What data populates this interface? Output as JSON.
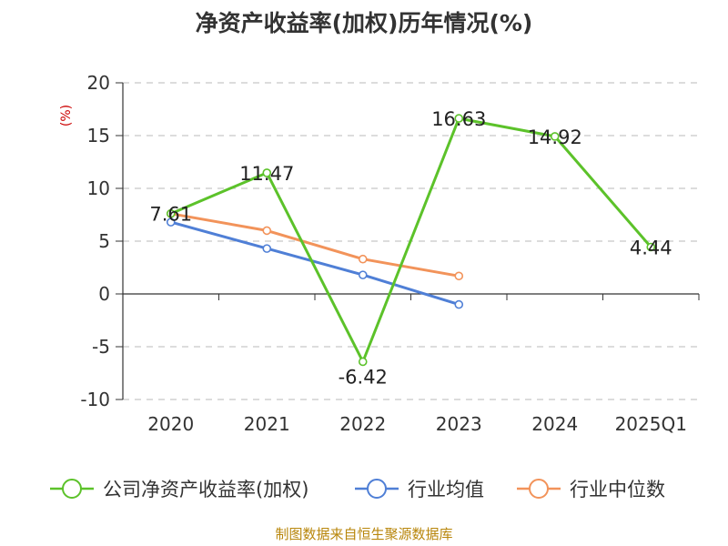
{
  "chart_data": {
    "type": "line",
    "title": "净资产收益率(加权)历年情况(%)",
    "ylabel": "(%)",
    "xlabel": "",
    "categories": [
      "2020",
      "2021",
      "2022",
      "2023",
      "2024",
      "2025Q1"
    ],
    "ylim": [
      -10,
      20
    ],
    "yticks": [
      20,
      15,
      10,
      5,
      0,
      -5,
      -10
    ],
    "grid": true,
    "legend_position": "bottom",
    "series": [
      {
        "name": "公司净资产收益率(加权)",
        "color": "#5cc22a",
        "values": [
          7.61,
          11.47,
          -6.42,
          16.63,
          14.92,
          4.44
        ],
        "labels": [
          "7.61",
          "11.47",
          "-6.42",
          "16.63",
          "14.92",
          "4.44"
        ]
      },
      {
        "name": "行业均值",
        "color": "#4f7fd6",
        "values": [
          6.8,
          4.3,
          1.8,
          -1.0,
          null,
          null
        ]
      },
      {
        "name": "行业中位数",
        "color": "#f2935a",
        "values": [
          7.6,
          6.0,
          3.3,
          1.7,
          null,
          null
        ]
      }
    ],
    "source": "制图数据来自恒生聚源数据库"
  }
}
